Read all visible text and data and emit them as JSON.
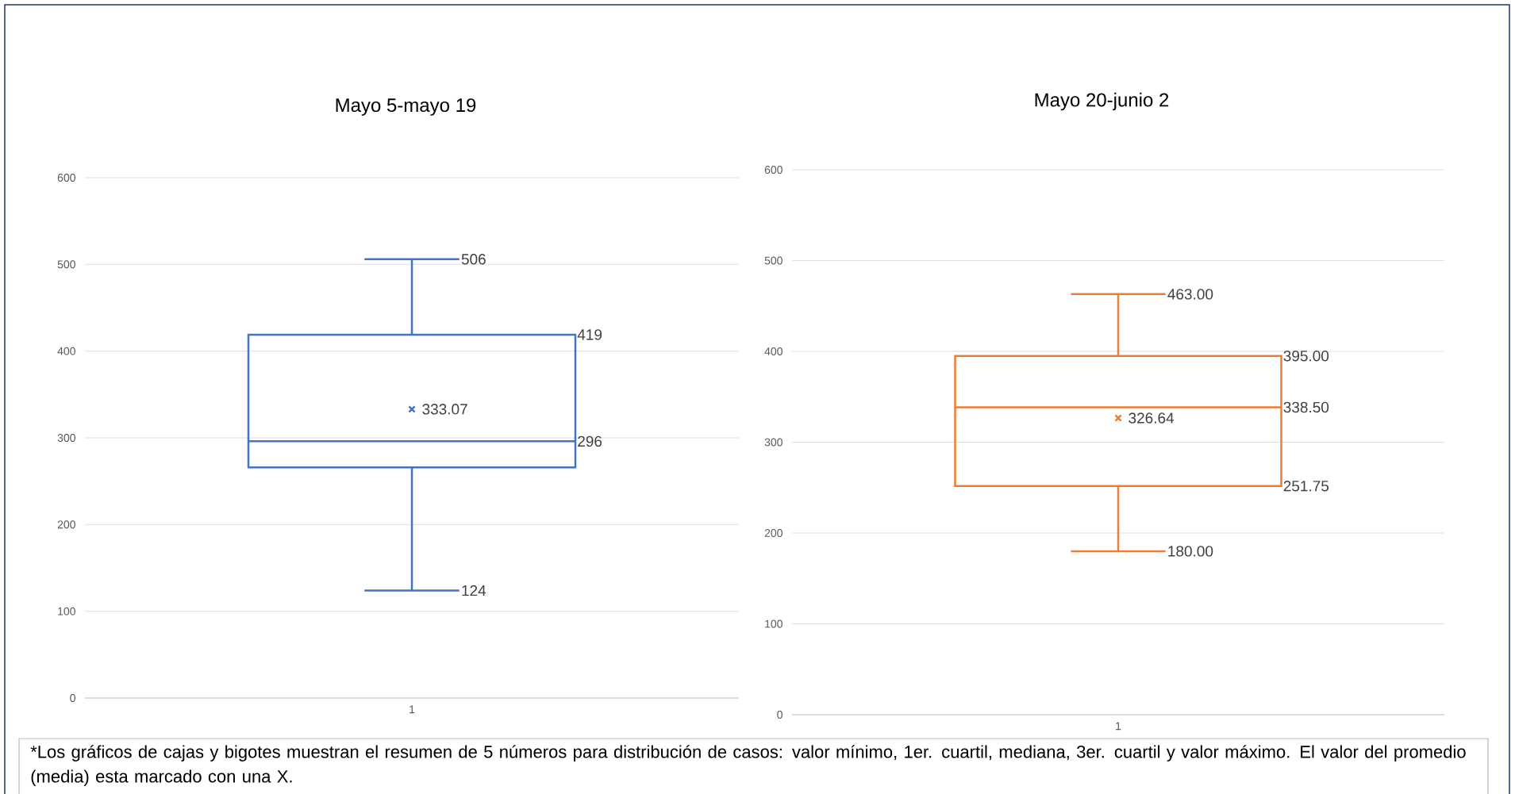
{
  "chart_data": [
    {
      "type": "box",
      "title": "Mayo 5-mayo 19",
      "categories": [
        "1"
      ],
      "color": "#4472c4",
      "ylim": [
        0,
        600
      ],
      "yticks": [
        0,
        100,
        200,
        300,
        400,
        500,
        600
      ],
      "grid": "y",
      "boxes": [
        {
          "low": 124,
          "q1": 266,
          "median": 296,
          "q3": 419,
          "high": 506,
          "mean": 333.07
        }
      ],
      "value_labels": [
        {
          "low": "124",
          "q1": null,
          "median": "296",
          "q3": "419",
          "high": "506",
          "mean": "333.07"
        }
      ],
      "annotations": [
        "*Los gráficos de cajas y bigotes muestran el resumen de 5 números para distribución de casos: valor mínimo, 1er. cuartil, mediana, 3er. cuartil y valor máximo. El valor del promedio (media) esta marcado con una X."
      ]
    },
    {
      "type": "box",
      "title": "Mayo 20-junio 2",
      "categories": [
        "1"
      ],
      "color": "#ed7d31",
      "ylim": [
        0,
        600
      ],
      "yticks": [
        0,
        100,
        200,
        300,
        400,
        500,
        600
      ],
      "grid": "y",
      "boxes": [
        {
          "low": 180,
          "q1": 251.75,
          "median": 338.5,
          "q3": 395,
          "high": 463,
          "mean": 326.64
        }
      ],
      "value_labels": [
        {
          "low": "180.00",
          "q1": "251.75",
          "median": "338.50",
          "q3": "395.00",
          "high": "463.00",
          "mean": "326.64"
        }
      ]
    }
  ]
}
